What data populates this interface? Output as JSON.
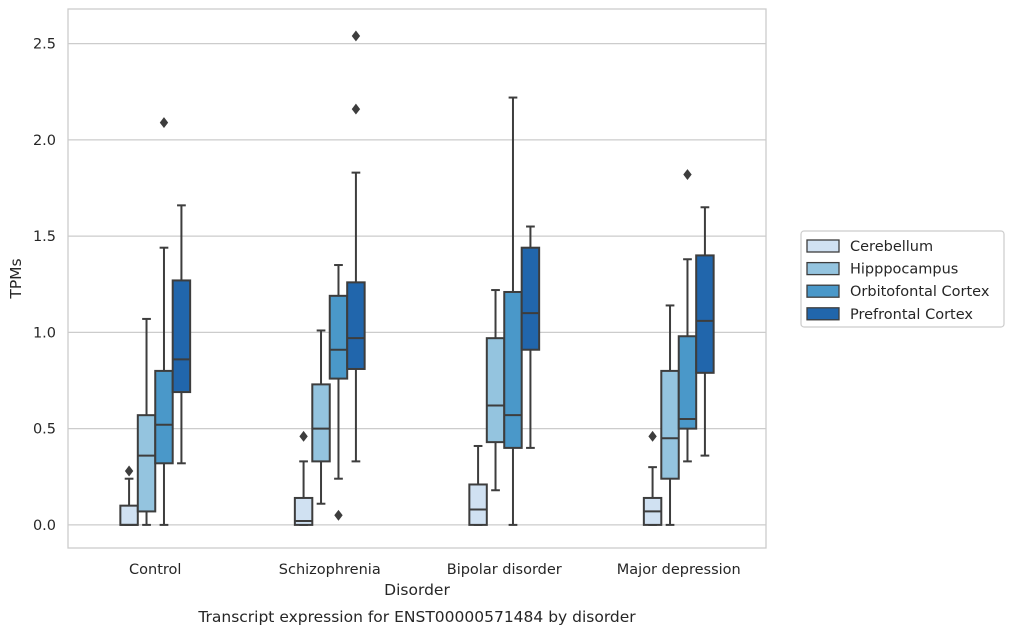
{
  "chart_data": {
    "type": "boxplot",
    "caption": "Transcript expression for ENST00000571484 by disorder",
    "xlabel": "Disorder",
    "ylabel": "TPMs",
    "ylim": [
      -0.12,
      2.68
    ],
    "yticks": [
      "0.0",
      "0.5",
      "1.0",
      "1.5",
      "2.0",
      "2.5"
    ],
    "ytick_values": [
      0.0,
      0.5,
      1.0,
      1.5,
      2.0,
      2.5
    ],
    "grid": "horizontal",
    "legend_position": "right",
    "categories": [
      "Control",
      "Schizophrenia",
      "Bipolar disorder",
      "Major depression"
    ],
    "series": [
      {
        "name": "Cerebellum",
        "color": "#d0e1f2",
        "boxes": [
          {
            "whislo": 0.0,
            "q1": 0.0,
            "med": 0.0,
            "q3": 0.1,
            "whishi": 0.24,
            "fliers": [
              0.28
            ]
          },
          {
            "whislo": 0.0,
            "q1": 0.0,
            "med": 0.02,
            "q3": 0.14,
            "whishi": 0.33,
            "fliers": [
              0.46
            ]
          },
          {
            "whislo": 0.0,
            "q1": 0.0,
            "med": 0.08,
            "q3": 0.21,
            "whishi": 0.41,
            "fliers": []
          },
          {
            "whislo": 0.0,
            "q1": 0.0,
            "med": 0.07,
            "q3": 0.14,
            "whishi": 0.3,
            "fliers": [
              0.46
            ]
          }
        ]
      },
      {
        "name": "Hipppocampus",
        "color": "#94c4df",
        "boxes": [
          {
            "whislo": 0.0,
            "q1": 0.07,
            "med": 0.36,
            "q3": 0.57,
            "whishi": 1.07,
            "fliers": []
          },
          {
            "whislo": 0.11,
            "q1": 0.33,
            "med": 0.5,
            "q3": 0.73,
            "whishi": 1.01,
            "fliers": []
          },
          {
            "whislo": 0.18,
            "q1": 0.43,
            "med": 0.62,
            "q3": 0.97,
            "whishi": 1.22,
            "fliers": []
          },
          {
            "whislo": 0.0,
            "q1": 0.24,
            "med": 0.45,
            "q3": 0.8,
            "whishi": 1.14,
            "fliers": []
          }
        ]
      },
      {
        "name": "Orbitofontal Cortex",
        "color": "#4a98c9",
        "boxes": [
          {
            "whislo": 0.0,
            "q1": 0.32,
            "med": 0.52,
            "q3": 0.8,
            "whishi": 1.44,
            "fliers": [
              2.09
            ]
          },
          {
            "whislo": 0.24,
            "q1": 0.76,
            "med": 0.91,
            "q3": 1.19,
            "whishi": 1.35,
            "fliers": [
              0.05
            ]
          },
          {
            "whislo": 0.0,
            "q1": 0.4,
            "med": 0.57,
            "q3": 1.21,
            "whishi": 2.22,
            "fliers": []
          },
          {
            "whislo": 0.33,
            "q1": 0.5,
            "med": 0.55,
            "q3": 0.98,
            "whishi": 1.38,
            "fliers": [
              1.82
            ]
          }
        ]
      },
      {
        "name": "Prefrontal Cortex",
        "color": "#2166ac",
        "boxes": [
          {
            "whislo": 0.32,
            "q1": 0.69,
            "med": 0.86,
            "q3": 1.27,
            "whishi": 1.66,
            "fliers": []
          },
          {
            "whislo": 0.33,
            "q1": 0.81,
            "med": 0.97,
            "q3": 1.26,
            "whishi": 1.83,
            "fliers": [
              2.16,
              2.54
            ]
          },
          {
            "whislo": 0.4,
            "q1": 0.91,
            "med": 1.1,
            "q3": 1.44,
            "whishi": 1.55,
            "fliers": []
          },
          {
            "whislo": 0.36,
            "q1": 0.79,
            "med": 1.06,
            "q3": 1.4,
            "whishi": 1.65,
            "fliers": []
          }
        ]
      }
    ]
  }
}
